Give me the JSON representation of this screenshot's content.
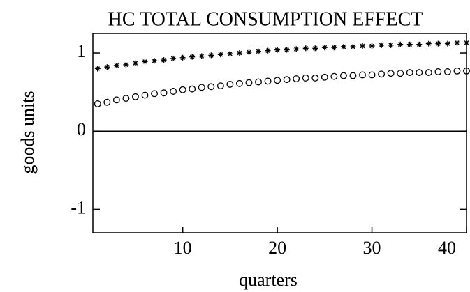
{
  "chart_data": {
    "type": "scatter",
    "title": "HC TOTAL CONSUMPTION EFFECT",
    "xlabel": "quarters",
    "ylabel": "goods units",
    "x": [
      1,
      2,
      3,
      4,
      5,
      6,
      7,
      8,
      9,
      10,
      11,
      12,
      13,
      14,
      15,
      16,
      17,
      18,
      19,
      20,
      21,
      22,
      23,
      24,
      25,
      26,
      27,
      28,
      29,
      30,
      31,
      32,
      33,
      34,
      35,
      36,
      37,
      38,
      39,
      40
    ],
    "series": [
      {
        "marker": "star",
        "color": "#000000",
        "values": [
          0.8,
          0.82,
          0.84,
          0.85,
          0.87,
          0.89,
          0.9,
          0.91,
          0.93,
          0.94,
          0.95,
          0.96,
          0.97,
          0.98,
          0.99,
          1.0,
          1.01,
          1.02,
          1.03,
          1.04,
          1.04,
          1.05,
          1.06,
          1.06,
          1.07,
          1.07,
          1.08,
          1.08,
          1.09,
          1.09,
          1.1,
          1.1,
          1.11,
          1.11,
          1.11,
          1.12,
          1.12,
          1.12,
          1.13,
          1.13
        ]
      },
      {
        "marker": "circle",
        "color": "#000000",
        "values": [
          0.35,
          0.37,
          0.4,
          0.42,
          0.44,
          0.46,
          0.48,
          0.49,
          0.51,
          0.53,
          0.54,
          0.56,
          0.57,
          0.58,
          0.6,
          0.61,
          0.62,
          0.63,
          0.64,
          0.65,
          0.66,
          0.67,
          0.68,
          0.68,
          0.69,
          0.7,
          0.71,
          0.71,
          0.72,
          0.72,
          0.73,
          0.74,
          0.74,
          0.75,
          0.75,
          0.75,
          0.76,
          0.76,
          0.77,
          0.77
        ]
      }
    ],
    "xlim": [
      0.5,
      40
    ],
    "xticks": [
      10,
      20,
      30,
      40
    ],
    "ylim": [
      -1.3,
      1.25
    ],
    "yticks": [
      -1,
      0,
      1
    ]
  }
}
